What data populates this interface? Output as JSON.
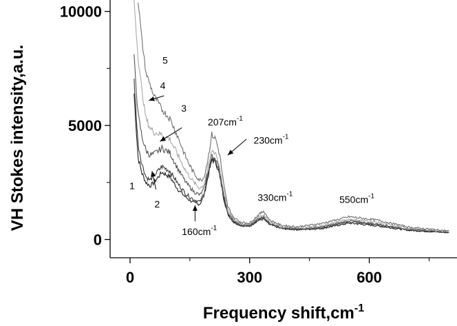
{
  "chart_data": {
    "type": "line",
    "title": "",
    "xlabel": "Frequency shift,cm",
    "xlabel_sup": "-1",
    "ylabel": "VH Stokes intensity,a.u.",
    "xlim": [
      -50,
      820
    ],
    "ylim": [
      -800,
      10500
    ],
    "xticks": [
      0,
      300,
      600
    ],
    "xtick_labels": [
      "0",
      "300",
      "600"
    ],
    "yticks": [
      0,
      5000,
      10000
    ],
    "ytick_labels": [
      "0",
      "5000",
      "10000"
    ],
    "grid": false,
    "legend": "none",
    "colors": {
      "axis": "#000000",
      "arrow": "#000000",
      "series": [
        "#1e1e1e",
        "#3a3a3a",
        "#555555",
        "#a8a8a8",
        "#707070"
      ]
    },
    "series": [
      {
        "name": "1",
        "x": [
          10,
          20,
          30,
          40,
          50,
          60,
          80,
          100,
          120,
          140,
          160,
          175,
          185,
          195,
          205,
          215,
          225,
          235,
          245,
          260,
          280,
          300,
          320,
          335,
          350,
          380,
          420,
          480,
          550,
          620,
          700,
          800
        ],
        "y": [
          6400,
          3600,
          2900,
          2500,
          2350,
          2500,
          2950,
          2750,
          2200,
          1850,
          1600,
          1550,
          1900,
          2700,
          3500,
          3400,
          2800,
          1800,
          1100,
          750,
          600,
          580,
          820,
          900,
          650,
          480,
          430,
          480,
          720,
          600,
          400,
          300
        ]
      },
      {
        "name": "2",
        "x": [
          10,
          20,
          30,
          40,
          50,
          60,
          80,
          100,
          120,
          140,
          160,
          175,
          185,
          195,
          205,
          215,
          225,
          235,
          245,
          260,
          280,
          300,
          320,
          335,
          350,
          380,
          420,
          480,
          550,
          620,
          700,
          800
        ],
        "y": [
          7000,
          4200,
          3300,
          2750,
          2600,
          2800,
          3200,
          3000,
          2450,
          2000,
          1750,
          1650,
          2000,
          2800,
          3550,
          3450,
          2850,
          1850,
          1150,
          780,
          620,
          600,
          860,
          950,
          680,
          500,
          450,
          520,
          780,
          650,
          430,
          320
        ]
      },
      {
        "name": "3",
        "x": [
          10,
          20,
          30,
          40,
          50,
          60,
          80,
          100,
          120,
          140,
          160,
          175,
          185,
          195,
          205,
          215,
          225,
          235,
          245,
          260,
          280,
          300,
          320,
          335,
          350,
          380,
          420,
          480,
          550,
          620,
          700,
          800
        ],
        "y": [
          8000,
          5500,
          4500,
          3900,
          3700,
          3750,
          4000,
          3800,
          3100,
          2500,
          2100,
          1950,
          2200,
          2950,
          3650,
          3550,
          2950,
          1950,
          1200,
          820,
          650,
          630,
          900,
          1000,
          720,
          520,
          470,
          550,
          820,
          680,
          450,
          330
        ]
      },
      {
        "name": "4",
        "x": [
          10,
          20,
          30,
          40,
          50,
          60,
          80,
          100,
          120,
          140,
          160,
          175,
          185,
          195,
          205,
          215,
          225,
          235,
          245,
          260,
          280,
          300,
          320,
          335,
          350,
          380,
          420,
          480,
          550,
          620,
          700,
          800
        ],
        "y": [
          10500,
          8000,
          6500,
          5300,
          4900,
          4700,
          4600,
          4400,
          3700,
          3000,
          2500,
          2250,
          2400,
          3100,
          3900,
          3800,
          3150,
          2100,
          1300,
          880,
          700,
          680,
          960,
          1080,
          780,
          560,
          510,
          600,
          900,
          750,
          480,
          350
        ]
      },
      {
        "name": "5",
        "x": [
          20,
          30,
          40,
          50,
          60,
          80,
          100,
          120,
          140,
          160,
          175,
          185,
          195,
          205,
          215,
          225,
          235,
          245,
          260,
          280,
          300,
          320,
          335,
          350,
          380,
          420,
          480,
          550,
          620,
          700,
          800
        ],
        "y": [
          10500,
          8700,
          7300,
          6800,
          6300,
          5700,
          5300,
          4500,
          3600,
          2900,
          2600,
          2700,
          3500,
          4600,
          4400,
          3700,
          2400,
          1450,
          950,
          750,
          720,
          1050,
          1250,
          850,
          620,
          560,
          700,
          1000,
          850,
          540,
          380
        ]
      }
    ],
    "series_label_positions": [
      {
        "text": "1",
        "x": 5,
        "y": 2200
      },
      {
        "text": "2",
        "x": 68,
        "y": 1400
      },
      {
        "text": "3",
        "x": 135,
        "y": 5600
      },
      {
        "text": "4",
        "x": 82,
        "y": 6600
      },
      {
        "text": "5",
        "x": 88,
        "y": 7700
      }
    ],
    "annotations": [
      {
        "text": "207cm",
        "sup": "-1",
        "x": 195,
        "y": 5000
      },
      {
        "text": "230cm",
        "sup": "-1",
        "x": 310,
        "y": 4200
      },
      {
        "text": "330cm",
        "sup": "-1",
        "x": 320,
        "y": 1700
      },
      {
        "text": "550cm",
        "sup": "-1",
        "x": 525,
        "y": 1600
      },
      {
        "text": "160cm",
        "sup": "-1",
        "x": 130,
        "y": 200
      }
    ],
    "arrows": [
      {
        "from": [
          85,
          6300
        ],
        "to": [
          47,
          6100
        ]
      },
      {
        "from": [
          130,
          4900
        ],
        "to": [
          75,
          4300
        ]
      },
      {
        "from": [
          292,
          4400
        ],
        "to": [
          245,
          3700
        ]
      },
      {
        "from": [
          163,
          800
        ],
        "to": [
          163,
          1500
        ]
      },
      {
        "from": [
          65,
          2200
        ],
        "to": [
          55,
          3000
        ]
      }
    ]
  }
}
